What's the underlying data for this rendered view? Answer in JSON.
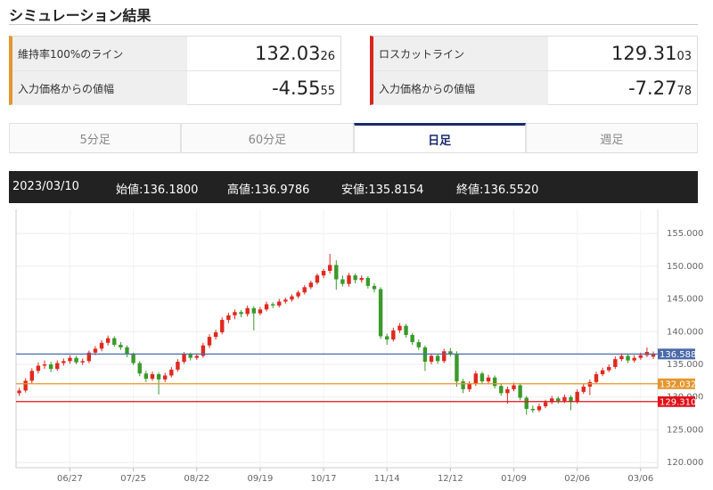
{
  "header": {
    "title": "シミュレーション結果"
  },
  "panels": [
    {
      "accent": "#e3962f",
      "rows": [
        {
          "label": "維持率100%のライン",
          "main": "132.03",
          "sub": "26"
        },
        {
          "label": "入力価格からの値幅",
          "main": "-4.55",
          "sub": "55"
        }
      ]
    },
    {
      "accent": "#d9261c",
      "rows": [
        {
          "label": "ロスカットライン",
          "main": "129.31",
          "sub": "03"
        },
        {
          "label": "入力価格からの値幅",
          "main": "-7.27",
          "sub": "78"
        }
      ]
    }
  ],
  "tabs": {
    "items": [
      "5分足",
      "60分足",
      "日足",
      "週足"
    ],
    "active": 2
  },
  "info_bar": {
    "date": "2023/03/10",
    "items": [
      "始値:136.1800",
      "高値:136.9786",
      "安値:135.8154",
      "終値:136.5520"
    ]
  },
  "chart_data": {
    "type": "candlestick",
    "up_color": "#e0291e",
    "down_color": "#3a9a2a",
    "grid": true,
    "xlim": [
      -0.5,
      100.7
    ],
    "ylim": [
      119.2,
      158.7
    ],
    "xticks": [
      {
        "value": 8,
        "label": "06/27"
      },
      {
        "value": 18,
        "label": "07/25"
      },
      {
        "value": 28,
        "label": "08/22"
      },
      {
        "value": 38,
        "label": "09/19"
      },
      {
        "value": 48,
        "label": "10/17"
      },
      {
        "value": 58,
        "label": "11/14"
      },
      {
        "value": 68,
        "label": "12/12"
      },
      {
        "value": 78,
        "label": "01/09"
      },
      {
        "value": 88,
        "label": "02/06"
      },
      {
        "value": 98,
        "label": "03/06"
      }
    ],
    "yticks": [
      {
        "value": 120,
        "label": "120.000"
      },
      {
        "value": 125,
        "label": "125.000"
      },
      {
        "value": 130,
        "label": "130.000"
      },
      {
        "value": 135,
        "label": "135.000"
      },
      {
        "value": 140,
        "label": "140.000"
      },
      {
        "value": 145,
        "label": "145.000"
      },
      {
        "value": 150,
        "label": "150.000"
      },
      {
        "value": 155,
        "label": "155.000"
      }
    ],
    "lines": [
      {
        "value": 136.5881,
        "color": "#4a6aa8"
      },
      {
        "value": 132.0326,
        "color": "#e3962f"
      },
      {
        "value": 129.3103,
        "color": "#e0121a"
      }
    ],
    "candles": [
      [
        130.6,
        131.4,
        130.2,
        131.0
      ],
      [
        131.0,
        132.9,
        130.7,
        132.5
      ],
      [
        132.5,
        134.4,
        132.1,
        134.0
      ],
      [
        134.0,
        135.3,
        133.6,
        134.8
      ],
      [
        134.8,
        135.6,
        134.3,
        135.0
      ],
      [
        135.0,
        135.4,
        133.8,
        134.3
      ],
      [
        134.3,
        135.6,
        134.0,
        135.2
      ],
      [
        135.2,
        135.9,
        134.8,
        135.5
      ],
      [
        135.5,
        136.4,
        135.1,
        136.0
      ],
      [
        136.0,
        136.3,
        135.0,
        135.3
      ],
      [
        135.3,
        135.9,
        134.9,
        135.5
      ],
      [
        135.5,
        137.1,
        135.2,
        136.8
      ],
      [
        136.8,
        137.8,
        136.4,
        137.4
      ],
      [
        137.4,
        138.7,
        137.0,
        138.3
      ],
      [
        138.3,
        139.4,
        137.9,
        139.0
      ],
      [
        139.0,
        139.3,
        137.7,
        138.0
      ],
      [
        138.0,
        138.4,
        137.2,
        137.6
      ],
      [
        137.6,
        137.9,
        136.1,
        136.5
      ],
      [
        136.5,
        136.8,
        134.9,
        135.2
      ],
      [
        135.2,
        135.5,
        133.2,
        133.6
      ],
      [
        133.6,
        134.0,
        132.3,
        132.8
      ],
      [
        132.8,
        133.9,
        132.5,
        133.5
      ],
      [
        133.5,
        133.8,
        130.4,
        132.7
      ],
      [
        132.7,
        133.7,
        132.3,
        133.3
      ],
      [
        133.3,
        134.6,
        133.0,
        134.2
      ],
      [
        134.2,
        135.8,
        133.9,
        135.4
      ],
      [
        135.4,
        136.9,
        135.1,
        136.5
      ],
      [
        136.5,
        136.8,
        135.6,
        136.0
      ],
      [
        136.0,
        136.7,
        135.7,
        136.3
      ],
      [
        136.3,
        138.3,
        136.0,
        137.9
      ],
      [
        137.9,
        139.6,
        137.5,
        139.2
      ],
      [
        139.2,
        140.3,
        138.8,
        139.9
      ],
      [
        139.9,
        142.2,
        139.6,
        141.8
      ],
      [
        141.8,
        142.9,
        141.3,
        142.5
      ],
      [
        142.5,
        143.4,
        141.9,
        143.0
      ],
      [
        143.0,
        143.3,
        142.2,
        142.7
      ],
      [
        142.7,
        144.0,
        142.3,
        143.6
      ],
      [
        143.6,
        143.9,
        140.2,
        142.8
      ],
      [
        142.8,
        143.8,
        142.5,
        143.4
      ],
      [
        143.4,
        144.6,
        143.1,
        144.2
      ],
      [
        144.2,
        144.5,
        143.6,
        144.0
      ],
      [
        144.0,
        145.0,
        143.7,
        144.6
      ],
      [
        144.6,
        145.2,
        144.3,
        144.9
      ],
      [
        144.9,
        145.7,
        144.6,
        145.4
      ],
      [
        145.4,
        146.3,
        145.1,
        146.0
      ],
      [
        146.0,
        147.1,
        145.7,
        146.8
      ],
      [
        146.8,
        147.8,
        146.5,
        147.5
      ],
      [
        147.5,
        148.9,
        147.2,
        148.6
      ],
      [
        148.6,
        149.6,
        148.2,
        149.3
      ],
      [
        149.3,
        151.9,
        148.9,
        150.2
      ],
      [
        150.2,
        150.9,
        146.4,
        148.0
      ],
      [
        148.0,
        148.6,
        146.9,
        147.3
      ],
      [
        147.3,
        149.0,
        146.9,
        148.6
      ],
      [
        148.6,
        148.9,
        147.4,
        147.9
      ],
      [
        147.9,
        148.6,
        147.5,
        148.2
      ],
      [
        148.2,
        148.5,
        146.6,
        147.0
      ],
      [
        147.0,
        147.4,
        146.0,
        146.5
      ],
      [
        146.5,
        146.8,
        138.9,
        139.3
      ],
      [
        139.3,
        139.7,
        138.0,
        138.8
      ],
      [
        138.8,
        140.6,
        138.5,
        140.2
      ],
      [
        140.2,
        141.3,
        139.8,
        140.9
      ],
      [
        140.9,
        141.2,
        139.1,
        139.5
      ],
      [
        139.5,
        139.8,
        138.0,
        138.4
      ],
      [
        138.4,
        138.8,
        137.2,
        137.6
      ],
      [
        137.6,
        137.9,
        134.0,
        135.4
      ],
      [
        135.4,
        136.7,
        135.0,
        136.3
      ],
      [
        136.3,
        136.6,
        135.1,
        135.5
      ],
      [
        135.5,
        137.4,
        135.2,
        137.0
      ],
      [
        137.0,
        137.5,
        136.2,
        136.6
      ],
      [
        136.6,
        137.0,
        131.6,
        132.4
      ],
      [
        132.4,
        132.8,
        130.6,
        131.2
      ],
      [
        131.2,
        132.4,
        130.8,
        132.0
      ],
      [
        132.0,
        134.0,
        131.7,
        133.6
      ],
      [
        133.6,
        133.9,
        132.0,
        132.4
      ],
      [
        132.4,
        133.4,
        132.1,
        133.0
      ],
      [
        133.0,
        133.3,
        131.3,
        131.7
      ],
      [
        131.7,
        132.0,
        130.2,
        130.6
      ],
      [
        130.6,
        131.6,
        129.0,
        131.2
      ],
      [
        131.2,
        132.2,
        130.9,
        131.8
      ],
      [
        131.8,
        132.1,
        129.5,
        129.9
      ],
      [
        129.9,
        130.2,
        127.3,
        128.2
      ],
      [
        128.2,
        128.7,
        127.6,
        128.0
      ],
      [
        128.0,
        129.0,
        127.7,
        128.6
      ],
      [
        128.6,
        129.6,
        128.3,
        129.2
      ],
      [
        129.2,
        130.2,
        128.9,
        129.8
      ],
      [
        129.8,
        130.1,
        129.0,
        129.4
      ],
      [
        129.4,
        130.4,
        129.1,
        130.0
      ],
      [
        130.0,
        130.3,
        128.0,
        129.3
      ],
      [
        129.3,
        131.2,
        129.0,
        130.8
      ],
      [
        130.8,
        132.0,
        130.5,
        131.6
      ],
      [
        131.6,
        132.7,
        130.3,
        132.3
      ],
      [
        132.3,
        133.9,
        132.0,
        133.5
      ],
      [
        133.5,
        134.5,
        133.2,
        134.1
      ],
      [
        134.1,
        135.0,
        133.8,
        134.6
      ],
      [
        134.6,
        136.2,
        134.3,
        135.8
      ],
      [
        135.8,
        136.7,
        135.5,
        136.3
      ],
      [
        136.3,
        136.6,
        135.2,
        135.6
      ],
      [
        135.6,
        136.4,
        135.3,
        136.0
      ],
      [
        136.0,
        136.8,
        135.7,
        136.4
      ],
      [
        136.4,
        137.6,
        136.1,
        136.9
      ],
      [
        136.18,
        136.9786,
        135.8154,
        136.552
      ]
    ]
  }
}
